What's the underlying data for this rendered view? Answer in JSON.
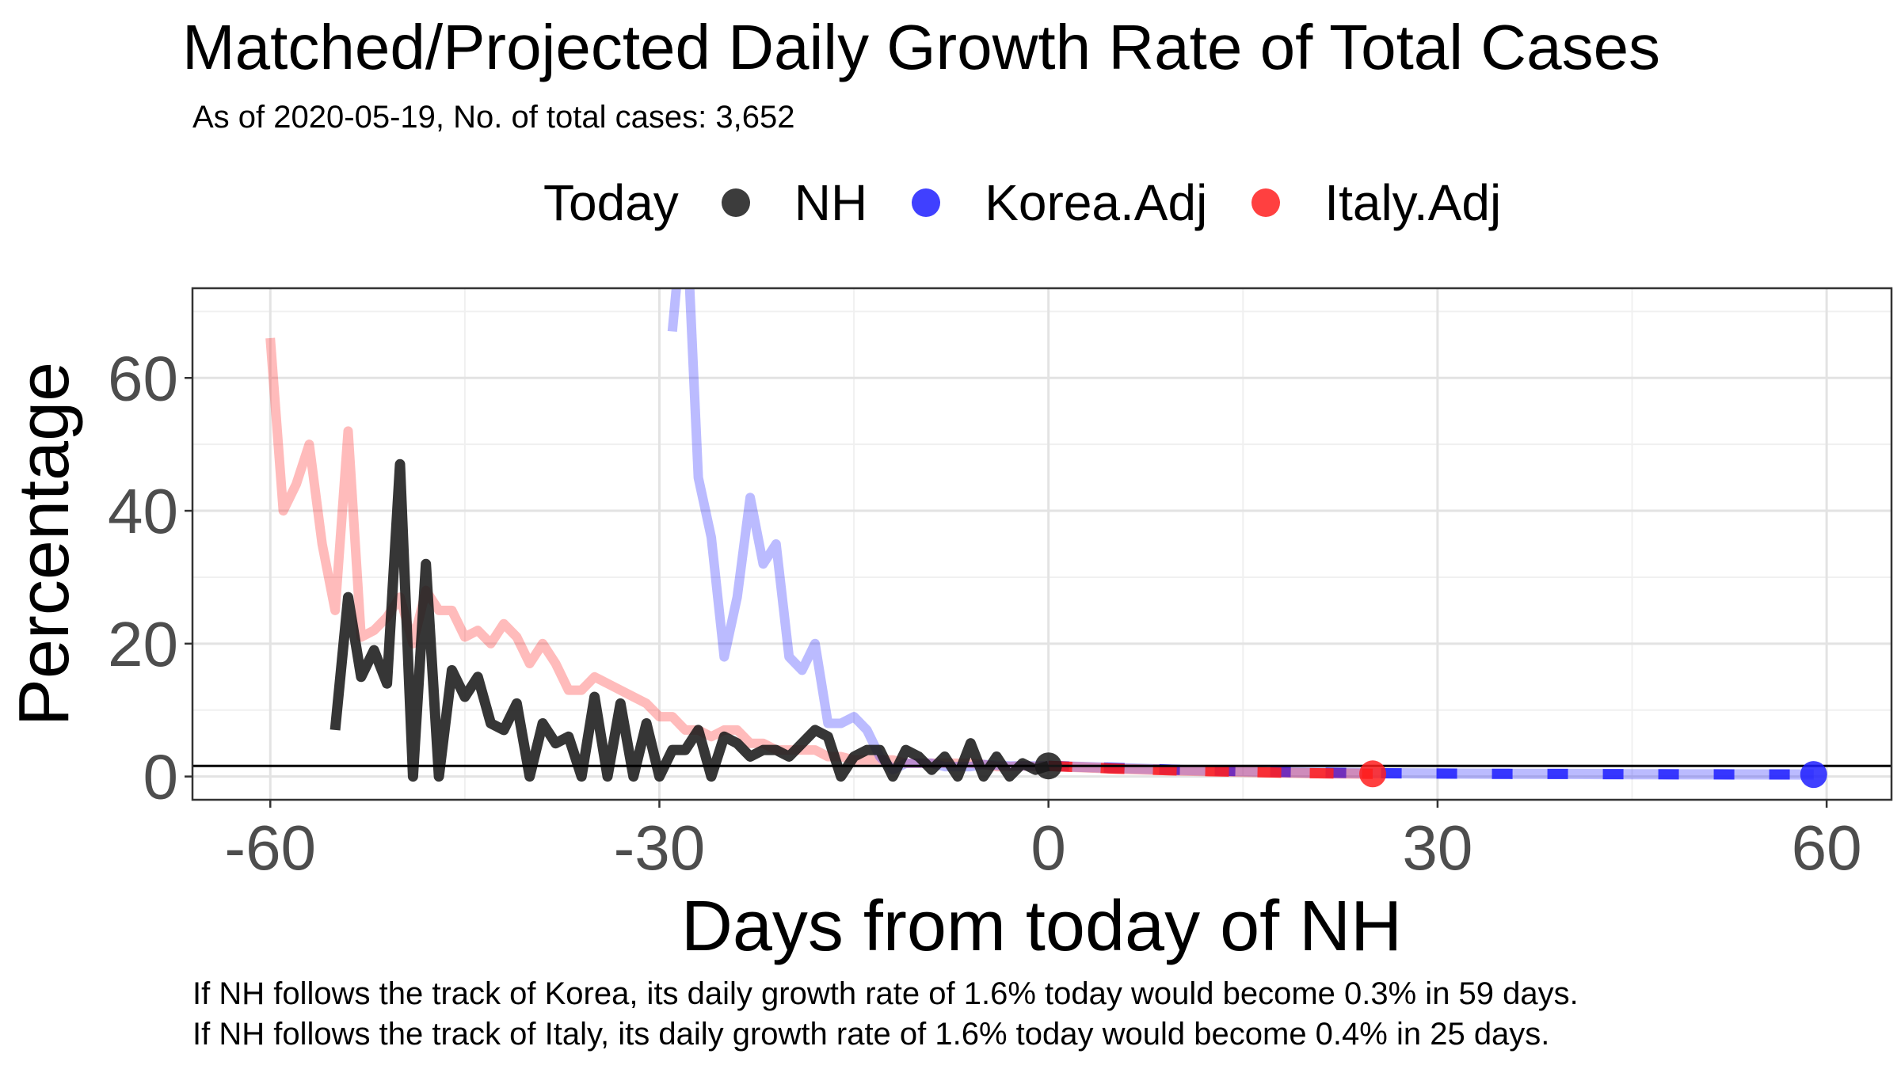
{
  "chart_data": {
    "type": "line",
    "title": "Matched/Projected Daily Growth Rate of Total Cases",
    "subtitle": "As of 2020-05-19, No. of total cases: 3,652",
    "xlabel": "Days from today of NH",
    "ylabel": "Percentage",
    "xlim": [
      -66,
      65
    ],
    "ylim": [
      -3.5,
      73.5
    ],
    "x_ticks": [
      -60,
      -30,
      0,
      30,
      60
    ],
    "x_tick_labels": [
      "-60",
      "-30",
      "0",
      "30",
      "60"
    ],
    "y_ticks": [
      0,
      20,
      40,
      60
    ],
    "y_tick_labels": [
      "0",
      "20",
      "40",
      "60"
    ],
    "x_minor": [
      -45,
      -15,
      15,
      45
    ],
    "y_minor": [
      10,
      30,
      50,
      70
    ],
    "grid": true,
    "reference_line_y": 1.6,
    "legend": {
      "title": "Today",
      "position": "top",
      "entries": [
        {
          "label": "NH",
          "color": "#1a1a1a"
        },
        {
          "label": "Korea.Adj",
          "color": "#1f1fff"
        },
        {
          "label": "Italy.Adj",
          "color": "#ff1f1f"
        }
      ]
    },
    "series": [
      {
        "name": "Italy.Adj",
        "color": "#ff1f1f",
        "x": [
          -60,
          -59,
          -58,
          -57,
          -56,
          -55,
          -54,
          -53,
          -52,
          -51,
          -50,
          -49,
          -48,
          -47,
          -46,
          -45,
          -44,
          -43,
          -42,
          -41,
          -40,
          -39,
          -38,
          -37,
          -36,
          -35,
          -34,
          -33,
          -32,
          -31,
          -30,
          -29,
          -28,
          -27,
          -26,
          -25,
          -24,
          -23,
          -22,
          -21,
          -20,
          -19,
          -18,
          -17,
          -16,
          -15,
          -14,
          -13,
          -12,
          -11,
          -10,
          -9,
          -8,
          -7,
          -6,
          -5,
          -4,
          -3,
          -2,
          -1,
          0
        ],
        "y": [
          66,
          40,
          44,
          50,
          35,
          25,
          52,
          21,
          22,
          24,
          27,
          20,
          28,
          25,
          25,
          21,
          22,
          20,
          23,
          21,
          17,
          20,
          17,
          13,
          13,
          15,
          14,
          13,
          12,
          11,
          9,
          9,
          7,
          7,
          6,
          7,
          7,
          5,
          5,
          4,
          4,
          4,
          4,
          3,
          3,
          2.5,
          2.5,
          2.5,
          2.5,
          2,
          2,
          2,
          2,
          2,
          2,
          1.8,
          1.5,
          1.5,
          1.6,
          1.5,
          1.6
        ],
        "projection_x": [
          0,
          5,
          10,
          15,
          20,
          25
        ],
        "projection_y": [
          1.6,
          1.2,
          0.9,
          0.7,
          0.5,
          0.4
        ]
      },
      {
        "name": "Korea.Adj",
        "color": "#1f1fff",
        "x": [
          -29,
          -28,
          -27,
          -26,
          -25,
          -24,
          -23,
          -22,
          -21,
          -20,
          -19,
          -18,
          -17,
          -16,
          -15,
          -14,
          -13,
          -12,
          -11,
          -10,
          -9,
          -8,
          -7,
          -6,
          -5,
          -4,
          -3,
          -2,
          -1,
          0
        ],
        "y": [
          67,
          88,
          45,
          36,
          18,
          27,
          42,
          32,
          35,
          18,
          16,
          20,
          8,
          8,
          9,
          7,
          3,
          1,
          2,
          2,
          2,
          1.5,
          1.5,
          1.5,
          1.8,
          1.7,
          1.6,
          1.6,
          1.6,
          1.6
        ],
        "projection_x": [
          0,
          5,
          10,
          15,
          20,
          25,
          30,
          35,
          40,
          45,
          50,
          55,
          59
        ],
        "projection_y": [
          1.6,
          1.3,
          1.0,
          0.8,
          0.6,
          0.5,
          0.45,
          0.4,
          0.38,
          0.35,
          0.33,
          0.32,
          0.3
        ]
      },
      {
        "name": "NH",
        "color": "#1a1a1a",
        "x": [
          -55,
          -54,
          -53,
          -52,
          -51,
          -50,
          -49,
          -48,
          -47,
          -46,
          -45,
          -44,
          -43,
          -42,
          -41,
          -40,
          -39,
          -38,
          -37,
          -36,
          -35,
          -34,
          -33,
          -32,
          -31,
          -30,
          -29,
          -28,
          -27,
          -26,
          -25,
          -24,
          -23,
          -22,
          -21,
          -20,
          -19,
          -18,
          -17,
          -16,
          -15,
          -14,
          -13,
          -12,
          -11,
          -10,
          -9,
          -8,
          -7,
          -6,
          -5,
          -4,
          -3,
          -2,
          -1,
          0
        ],
        "y": [
          7,
          27,
          15,
          19,
          14,
          47,
          0,
          32,
          0,
          16,
          12,
          15,
          8,
          7,
          11,
          0,
          8,
          5,
          6,
          0,
          12,
          0,
          11,
          0,
          8,
          0,
          4,
          4,
          7,
          0,
          6,
          5,
          3,
          4,
          4,
          3,
          5,
          7,
          6,
          0,
          3,
          4,
          4,
          0,
          4,
          3,
          1,
          3,
          0,
          5,
          0,
          3,
          0,
          2,
          1,
          1.6
        ]
      }
    ],
    "today_points": [
      {
        "series": "NH",
        "x": 0,
        "y": 1.6
      },
      {
        "series": "Italy.Adj",
        "x": 25,
        "y": 0.4
      },
      {
        "series": "Korea.Adj",
        "x": 59,
        "y": 0.3
      }
    ],
    "annotations": [
      "If NH follows the track of Korea, its daily growth rate of 1.6% today would become 0.3% in 59 days.",
      "If NH follows the track of Italy, its daily growth rate of 1.6% today would become 0.4% in 25 days."
    ]
  }
}
